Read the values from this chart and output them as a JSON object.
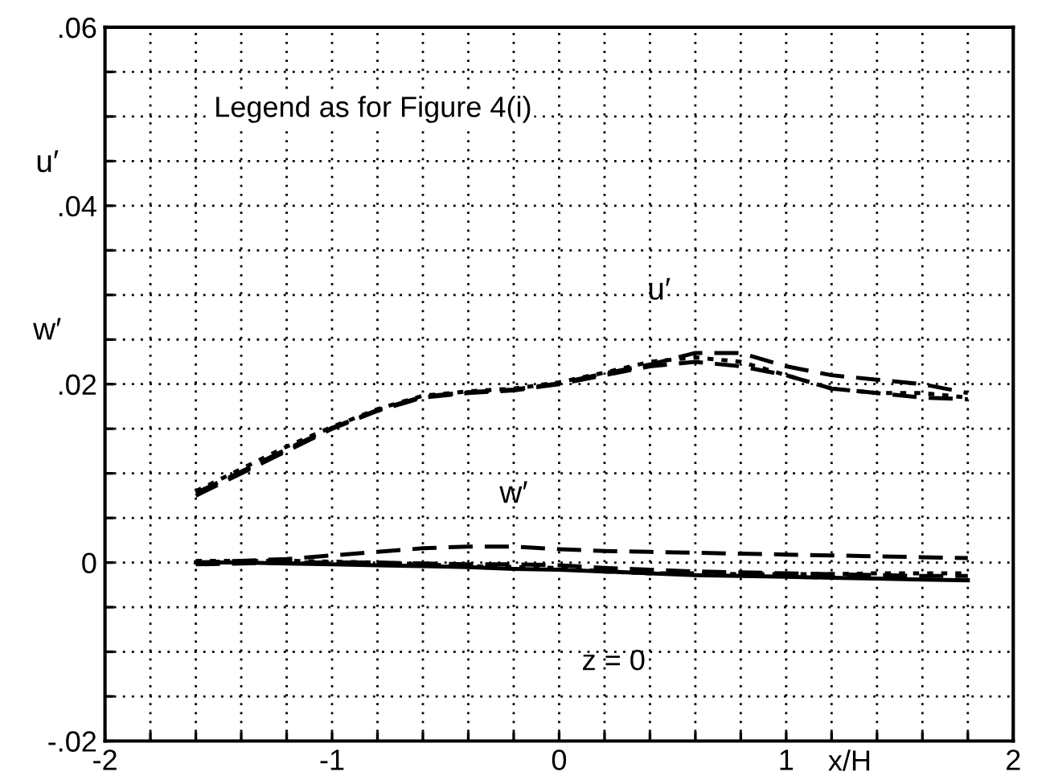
{
  "chart_data": {
    "type": "line",
    "xlabel": "x/H",
    "ylabel": "u′ w′",
    "annotations": [
      "Legend as for Figure 4(i)",
      "u′",
      "w′",
      "z = 0"
    ],
    "xlim": [
      -2,
      2
    ],
    "ylim": [
      -0.02,
      0.06
    ],
    "xticks": [
      {
        "value": -2,
        "label": "-2"
      },
      {
        "value": -1.8,
        "label": null
      },
      {
        "value": -1.6,
        "label": null
      },
      {
        "value": -1.4,
        "label": null
      },
      {
        "value": -1.2,
        "label": null
      },
      {
        "value": -1,
        "label": "-1"
      },
      {
        "value": -0.8,
        "label": null
      },
      {
        "value": -0.6,
        "label": null
      },
      {
        "value": -0.4,
        "label": null
      },
      {
        "value": -0.2,
        "label": null
      },
      0,
      {
        "value": 0.2,
        "label": null
      },
      {
        "value": 0.4,
        "label": null
      },
      {
        "value": 0.6,
        "label": null
      },
      {
        "value": 0.8,
        "label": null
      },
      1,
      {
        "value": 1.2,
        "label": null
      },
      {
        "value": 1.4,
        "label": null
      },
      {
        "value": 1.6,
        "label": null
      },
      {
        "value": 1.8,
        "label": null
      },
      2
    ],
    "yticks": [
      {
        "value": -0.02,
        "label": "-.02"
      },
      {
        "value": -0.015,
        "label": null
      },
      {
        "value": -0.01,
        "label": null
      },
      {
        "value": -0.005,
        "label": null
      },
      0,
      {
        "value": 0.005,
        "label": null
      },
      {
        "value": 0.01,
        "label": null
      },
      {
        "value": 0.015,
        "label": null
      },
      {
        "value": 0.02,
        "label": ".02"
      },
      {
        "value": 0.025,
        "label": null
      },
      {
        "value": 0.03,
        "label": null
      },
      {
        "value": 0.035,
        "label": null
      },
      {
        "value": 0.04,
        "label": ".04"
      },
      {
        "value": 0.045,
        "label": null
      },
      {
        "value": 0.05,
        "label": null
      },
      {
        "value": 0.055,
        "label": null
      },
      {
        "value": 0.06,
        "label": ".06"
      }
    ],
    "grid": true,
    "legend": false,
    "x": [
      -1.6,
      -1.4,
      -1.2,
      -1.0,
      -0.8,
      -0.6,
      -0.4,
      -0.2,
      0,
      0.2,
      0.4,
      0.6,
      0.8,
      1.0,
      1.2,
      1.4,
      1.6,
      1.8
    ],
    "series": [
      {
        "color": "#000000",
        "line_style": "dashed",
        "values": [
          0.0075,
          0.01,
          0.0125,
          0.015,
          0.017,
          0.0185,
          0.019,
          0.0193,
          0.02,
          0.021,
          0.022,
          0.0225,
          0.022,
          0.021,
          0.0195,
          0.019,
          0.0185,
          0.0183
        ]
      },
      {
        "color": "#000000",
        "line_style": "dotted",
        "values": [
          0.008,
          0.0105,
          0.013,
          0.0152,
          0.0172,
          0.0187,
          0.0192,
          0.0195,
          0.0202,
          0.0213,
          0.0225,
          0.023,
          0.0225,
          0.021,
          0.0195,
          0.019,
          0.019,
          0.0185
        ]
      },
      {
        "color": "#000000",
        "line_style": "dashed",
        "values": [
          0.0078,
          0.0102,
          0.0127,
          0.0151,
          0.0171,
          0.0186,
          0.0191,
          0.0194,
          0.0201,
          0.0212,
          0.0222,
          0.0235,
          0.0235,
          0.022,
          0.021,
          0.0205,
          0.02,
          0.019
        ]
      },
      {
        "color": "#000000",
        "line_style": "dashed",
        "values": [
          0,
          0.0002,
          0.0004,
          0.0008,
          0.0012,
          0.0016,
          0.0018,
          0.0018,
          0.0015,
          0.0013,
          0.0012,
          0.0011,
          0.001,
          0.0009,
          0.0008,
          0.0007,
          0.0006,
          0.0005
        ]
      },
      {
        "color": "#000000",
        "line_style": "dotted",
        "values": [
          0.0002,
          0.0002,
          0.0002,
          0.0001,
          0,
          -0.0002,
          -0.0004,
          -0.0005,
          -0.0006,
          -0.001,
          -0.0012,
          -0.0012,
          -0.0013,
          -0.0013,
          -0.0013,
          -0.0012,
          -0.0012,
          -0.0012
        ]
      },
      {
        "color": "#000000",
        "line_style": "dashed",
        "values": [
          -0.0002,
          -0.0001,
          0,
          0,
          0,
          -0.0001,
          -0.0002,
          -0.0002,
          -0.0003,
          -0.0006,
          -0.0008,
          -0.001,
          -0.0011,
          -0.0012,
          -0.0013,
          -0.0014,
          -0.0015,
          -0.0015
        ]
      },
      {
        "color": "#000000",
        "line_style": "solid",
        "values": [
          0,
          0,
          -0.0001,
          -0.0002,
          -0.0003,
          -0.0004,
          -0.0005,
          -0.0007,
          -0.0008,
          -0.001,
          -0.0012,
          -0.0014,
          -0.0015,
          -0.0016,
          -0.0017,
          -0.0018,
          -0.0019,
          -0.002
        ]
      }
    ]
  }
}
